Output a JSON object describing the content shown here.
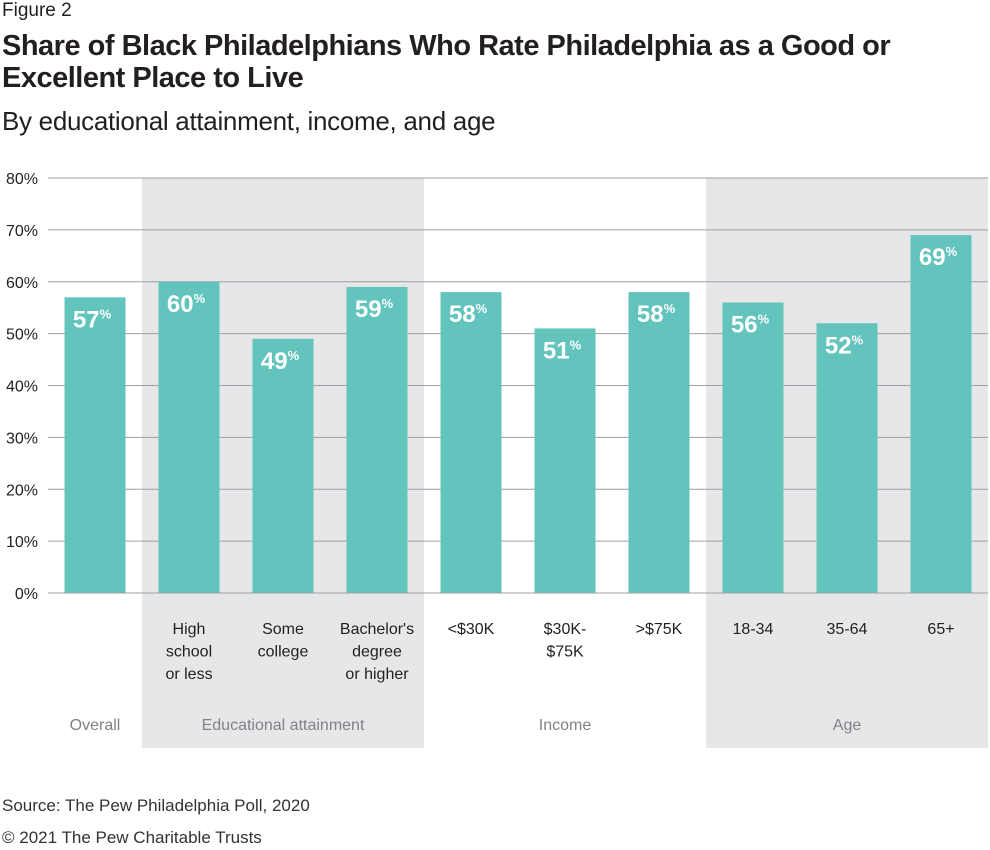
{
  "figure_label": "Figure 2",
  "title": "Share of Black Philadelphians Who Rate Philadelphia as a Good or Excellent Place to Live",
  "subtitle": "By educational attainment, income, and age",
  "source": "Source: The Pew Philadelphia Poll, 2020",
  "copyright": "© 2021 The Pew Charitable Trusts",
  "colors": {
    "bar": "#62c4bc",
    "group_band": "#e6e7e8",
    "gridline": "#9d9fa2",
    "bar_label": "#ffffff",
    "axis_text": "#231f20",
    "group_text": "#808285"
  },
  "chart_data": {
    "type": "bar",
    "title": "Share of Black Philadelphians Who Rate Philadelphia as a Good or Excellent Place to Live",
    "subtitle": "By educational attainment, income, and age",
    "categories": [
      [
        "",
        ""
      ],
      [
        "High",
        "school",
        "or less"
      ],
      [
        "Some",
        "college"
      ],
      [
        "Bachelor's",
        "degree",
        "or higher"
      ],
      [
        "<$30K"
      ],
      [
        "$30K-",
        "$75K"
      ],
      [
        ">$75K"
      ],
      [
        "18-34"
      ],
      [
        "35-64"
      ],
      [
        "65+"
      ]
    ],
    "values": [
      57,
      60,
      49,
      59,
      58,
      51,
      58,
      56,
      52,
      69
    ],
    "value_labels": [
      "57",
      "60",
      "49",
      "59",
      "58",
      "51",
      "58",
      "56",
      "52",
      "69"
    ],
    "value_suffix": "%",
    "groups": [
      {
        "name": "Overall",
        "start": 0,
        "end": 0,
        "shaded": false
      },
      {
        "name": "Educational attainment",
        "start": 1,
        "end": 3,
        "shaded": true
      },
      {
        "name": "Income",
        "start": 4,
        "end": 6,
        "shaded": false
      },
      {
        "name": "Age",
        "start": 7,
        "end": 9,
        "shaded": true
      }
    ],
    "yticks": [
      "0%",
      "10%",
      "20%",
      "30%",
      "40%",
      "50%",
      "60%",
      "70%",
      "80%"
    ],
    "ylim": [
      0,
      80
    ],
    "grid": true,
    "xlabel": "",
    "ylabel": ""
  }
}
